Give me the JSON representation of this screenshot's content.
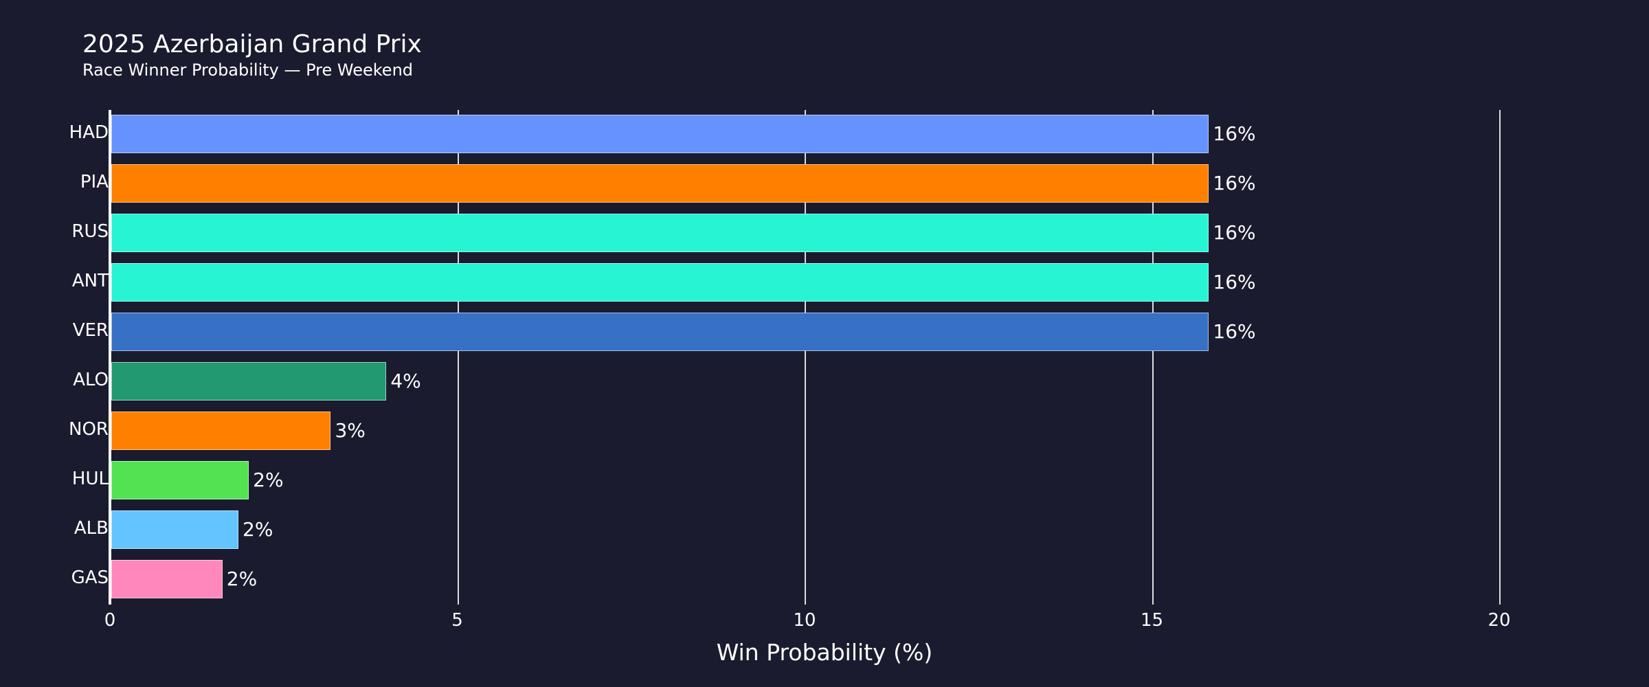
{
  "title": "2025 Azerbaijan Grand Prix",
  "subtitle": "Race Winner Probability — Pre Weekend",
  "chart_data": {
    "type": "bar",
    "orientation": "horizontal",
    "title": "2025 Azerbaijan Grand Prix",
    "subtitle": "Race Winner Probability — Pre Weekend",
    "xlabel": "Win Probability (%)",
    "ylabel": "",
    "xlim": [
      0,
      20
    ],
    "xticks": [
      0,
      5,
      10,
      15,
      20
    ],
    "grid": true,
    "categories": [
      "HAD",
      "PIA",
      "RUS",
      "ANT",
      "VER",
      "ALO",
      "NOR",
      "HUL",
      "ALB",
      "GAS"
    ],
    "values": [
      15.8,
      15.8,
      15.8,
      15.8,
      15.8,
      3.96,
      3.16,
      1.98,
      1.83,
      1.6
    ],
    "labels": [
      "16%",
      "16%",
      "16%",
      "16%",
      "16%",
      "4%",
      "3%",
      "2%",
      "2%",
      "2%"
    ],
    "colors": [
      "#6692ff",
      "#ff8000",
      "#27f4d2",
      "#27f4d2",
      "#3671c6",
      "#229971",
      "#ff8000",
      "#52e252",
      "#64c4ff",
      "#ff87bc"
    ]
  },
  "axis": {
    "xlabel": "Win Probability (%)",
    "ticks": [
      "0",
      "5",
      "10",
      "15",
      "20"
    ]
  },
  "rows": [
    {
      "driver": "HAD",
      "label": "16%"
    },
    {
      "driver": "PIA",
      "label": "16%"
    },
    {
      "driver": "RUS",
      "label": "16%"
    },
    {
      "driver": "ANT",
      "label": "16%"
    },
    {
      "driver": "VER",
      "label": "16%"
    },
    {
      "driver": "ALO",
      "label": "4%"
    },
    {
      "driver": "NOR",
      "label": "3%"
    },
    {
      "driver": "HUL",
      "label": "2%"
    },
    {
      "driver": "ALB",
      "label": "2%"
    },
    {
      "driver": "GAS",
      "label": "2%"
    }
  ],
  "colors": {
    "background": "#1b1b2f",
    "text": "#ffffff",
    "grid": "#dcdcdc"
  }
}
